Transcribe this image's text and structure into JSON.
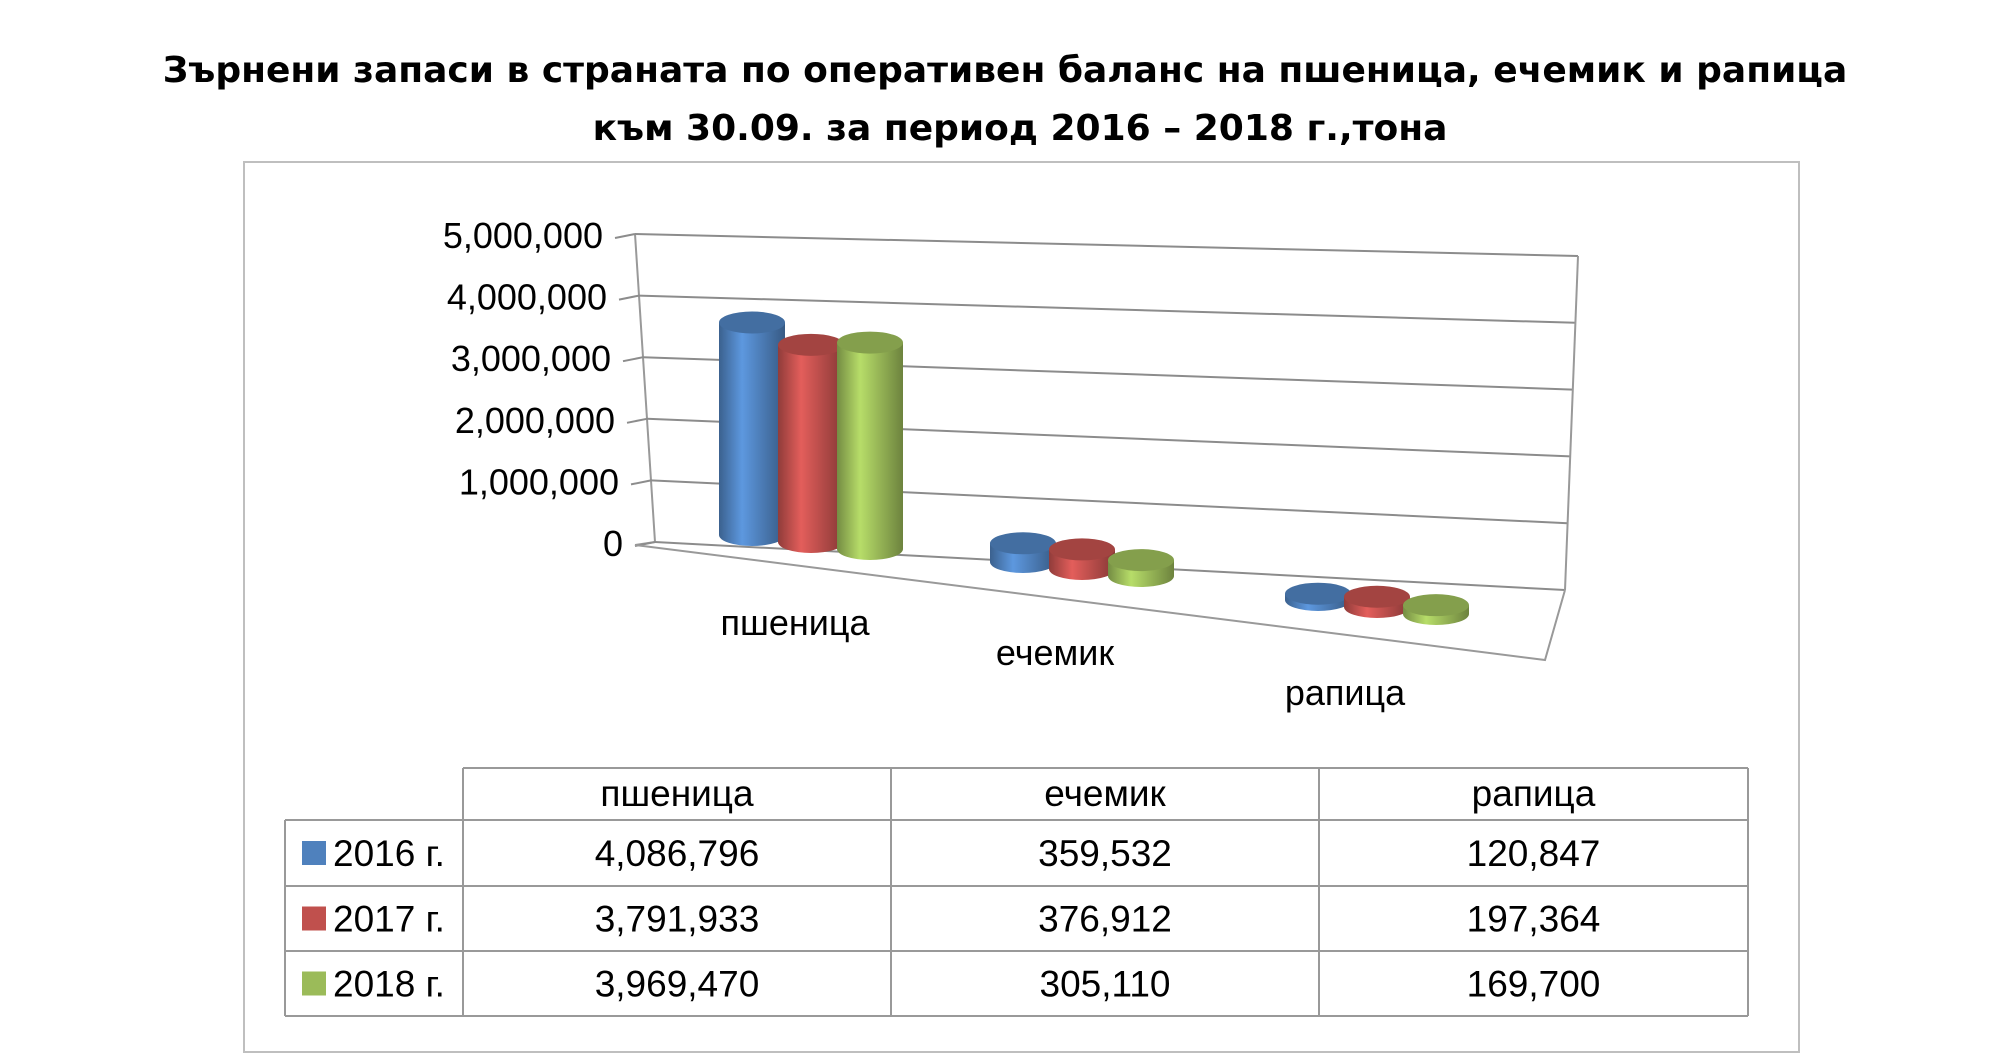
{
  "title": {
    "line1": "Зърнени запаси  в страната по оперативен баланс на пшеница, ечемик и рапица",
    "line2": "към 30.09. за период 2016 – 2018 г.,тона"
  },
  "chart_data": {
    "type": "bar",
    "style": "3d-cylinder",
    "title": "Зърнени запаси  в страната по оперативен баланс на пшеница, ечемик и рапица към 30.09. за период 2016 – 2018 г.,тона",
    "categories": [
      "пшеница",
      "ечемик",
      "рапица"
    ],
    "series": [
      {
        "name": "2016 г.",
        "color": "#4f81bd",
        "values": [
          4086796,
          359532,
          120847
        ]
      },
      {
        "name": "2017 г.",
        "color": "#c0504d",
        "values": [
          3791933,
          376912,
          197364
        ]
      },
      {
        "name": "2018 г.",
        "color": "#9bbb59",
        "values": [
          3969470,
          305110,
          169700
        ]
      }
    ],
    "ylim": [
      0,
      5000000
    ],
    "yticks": [
      0,
      1000000,
      2000000,
      3000000,
      4000000,
      5000000
    ],
    "ytick_labels": [
      "0",
      "1,000,000",
      "2,000,000",
      "3,000,000",
      "4,000,000",
      "5,000,000"
    ],
    "grid": true,
    "legend": "data-table",
    "data_table": {
      "rows": [
        {
          "label": "2016 г.",
          "values": [
            "4,086,796",
            "359,532",
            "120,847"
          ]
        },
        {
          "label": "2017 г.",
          "values": [
            "3,791,933",
            "376,912",
            "197,364"
          ]
        },
        {
          "label": "2018 г.",
          "values": [
            "3,969,470",
            "305,110",
            "169,700"
          ]
        }
      ]
    }
  }
}
